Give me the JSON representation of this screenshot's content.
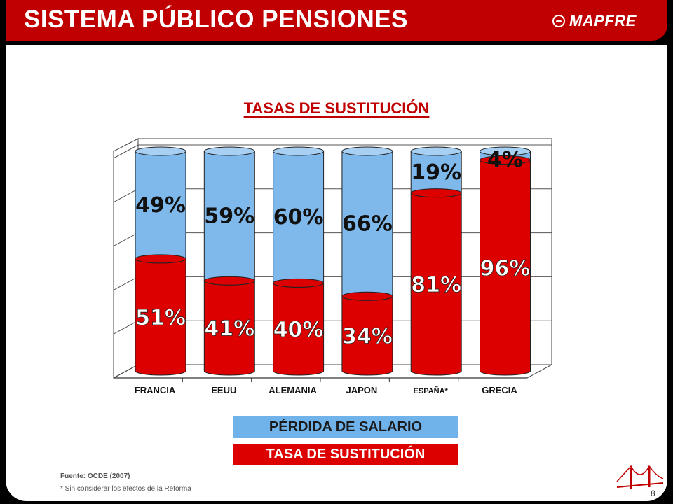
{
  "header": {
    "title": "SISTEMA PÚBLICO PENSIONES",
    "logo": "MAPFRE"
  },
  "legend": {
    "perdida": "PÉRDIDA DE SALARIO",
    "tasa": "TASA DE SUSTITUCIÓN"
  },
  "footnotes": {
    "source": "Fuente: OCDE (2007)",
    "note": "* Sin considerar los efectos de la Reforma"
  },
  "page_number": "8",
  "colors": {
    "red": "#dd0000",
    "blue": "#7fb8ea",
    "header": "#c00000"
  },
  "chart_data": {
    "type": "bar",
    "stacked": true,
    "title": "TASAS DE SUSTITUCIÓN",
    "categories": [
      "FRANCIA",
      "EEUU",
      "ALEMANIA",
      "JAPON",
      "ESPAÑA*",
      "GRECIA"
    ],
    "series": [
      {
        "name": "TASA DE SUSTITUCIÓN",
        "values": [
          51,
          41,
          40,
          34,
          81,
          96
        ],
        "labels": [
          "51%",
          "41%",
          "40%",
          "34%",
          "81%",
          "96%"
        ]
      },
      {
        "name": "PÉRDIDA DE SALARIO",
        "values": [
          49,
          59,
          60,
          66,
          19,
          4
        ],
        "labels": [
          "49%",
          "59%",
          "60%",
          "66%",
          "19%",
          "4%"
        ]
      }
    ],
    "ylim": [
      0,
      100
    ],
    "grid": true
  }
}
